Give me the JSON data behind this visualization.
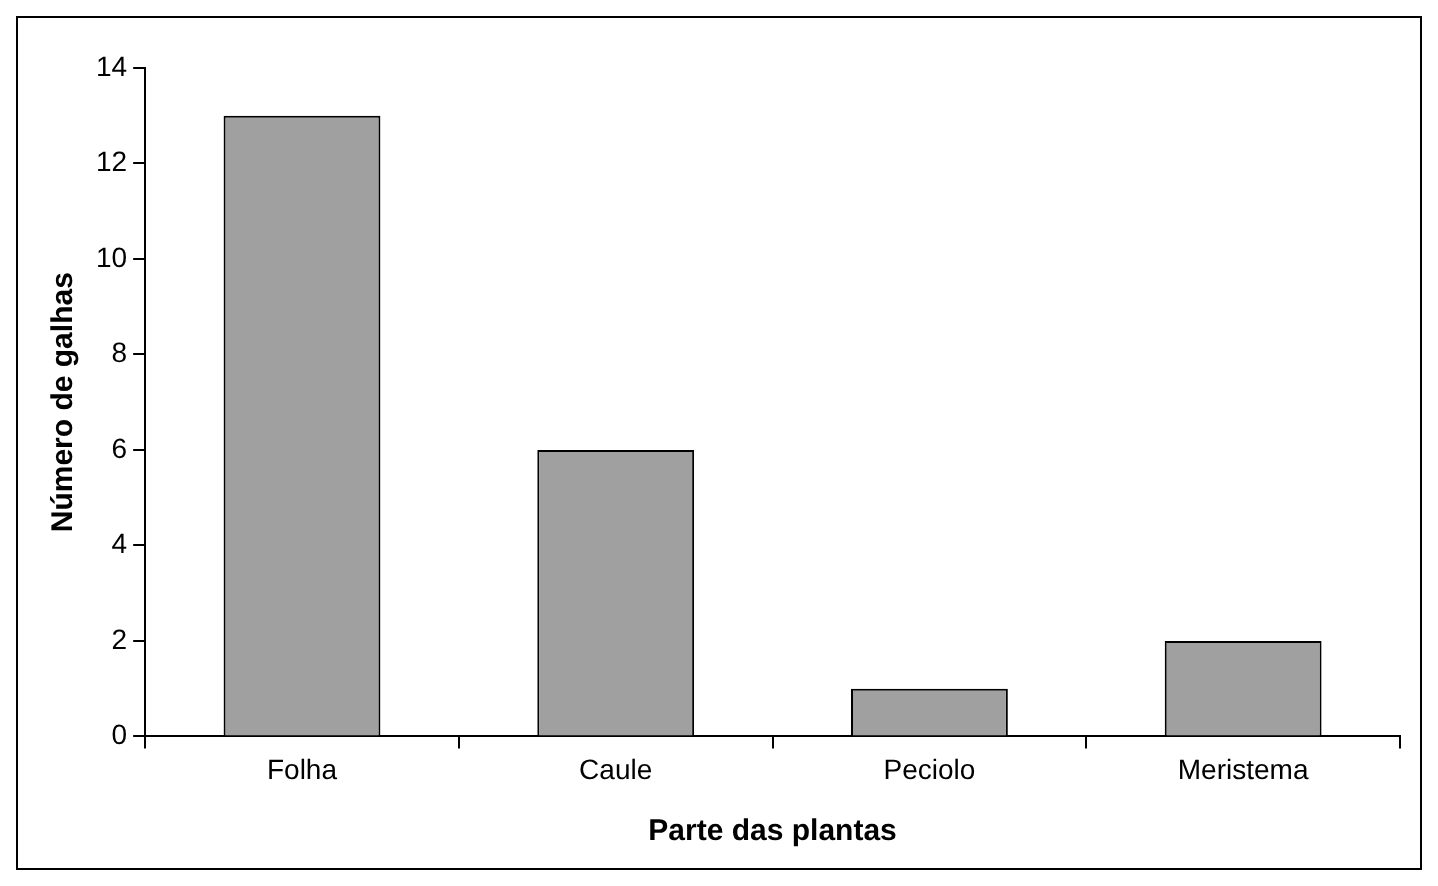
{
  "chart_data": {
    "type": "bar",
    "xlabel": "Parte das plantas",
    "ylabel": "Número de galhas",
    "categories": [
      "Folha",
      "Caule",
      "Peciolo",
      "Meristema"
    ],
    "values": [
      13,
      6,
      1,
      2
    ],
    "color": "#a0a0a0",
    "ylim": [
      0,
      14
    ],
    "yticks": [
      0,
      2,
      4,
      6,
      8,
      10,
      12,
      14
    ],
    "grid": false,
    "legend": false
  }
}
